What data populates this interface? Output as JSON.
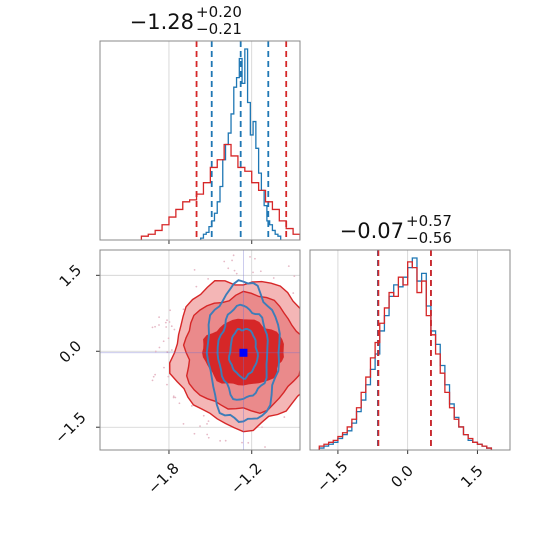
{
  "chart_data": {
    "type": "corner",
    "parameters": [
      "p1",
      "p2"
    ],
    "panels": [
      {
        "id": "hist-p1",
        "type": "histogram",
        "title_main": "−1.28",
        "title_sup": "+0.20",
        "title_sub": "−0.21",
        "xlim": [
          -2.3,
          -0.85
        ],
        "xticks": [
          -1.8,
          -1.2
        ],
        "grid": true,
        "series": [
          {
            "color": "#1f77b4",
            "bins": [
              -1.57,
              -1.55,
              -1.53,
              -1.51,
              -1.49,
              -1.47,
              -1.45,
              -1.43,
              -1.41,
              -1.39,
              -1.37,
              -1.35,
              -1.33,
              -1.31,
              -1.29,
              -1.27,
              -1.25,
              -1.23,
              -1.21,
              -1.19,
              -1.17,
              -1.15,
              -1.13,
              -1.11,
              -1.09,
              -1.07,
              -1.05,
              -1.03,
              -1.01,
              -0.99
            ],
            "counts": [
              0.01,
              0.03,
              0.04,
              0.07,
              0.1,
              0.14,
              0.2,
              0.28,
              0.42,
              0.5,
              0.56,
              0.66,
              0.8,
              0.85,
              0.95,
              0.82,
              1.0,
              0.72,
              0.55,
              0.62,
              0.48,
              0.35,
              0.26,
              0.18,
              0.1,
              0.08,
              0.05,
              0.03,
              0.02
            ],
            "quantile_lines": [
              -1.49,
              -1.28,
              -1.08
            ]
          },
          {
            "color": "#d62728",
            "bins": [
              -2.0,
              -1.95,
              -1.9,
              -1.85,
              -1.8,
              -1.75,
              -1.7,
              -1.65,
              -1.6,
              -1.55,
              -1.5,
              -1.45,
              -1.4,
              -1.35,
              -1.3,
              -1.25,
              -1.2,
              -1.15,
              -1.1,
              -1.05,
              -1.0,
              -0.95,
              -0.9,
              -0.85
            ],
            "counts": [
              0.02,
              0.03,
              0.05,
              0.08,
              0.12,
              0.16,
              0.2,
              0.21,
              0.24,
              0.3,
              0.38,
              0.42,
              0.5,
              0.44,
              0.38,
              0.36,
              0.3,
              0.26,
              0.2,
              0.16,
              0.1,
              0.06,
              0.03
            ],
            "quantile_lines": [
              -1.6,
              -0.95
            ]
          }
        ]
      },
      {
        "id": "hist-p2",
        "type": "histogram",
        "title_main": "−0.07",
        "title_sup": "+0.57",
        "title_sub": "−0.56",
        "xlim": [
          -2.1,
          2.2
        ],
        "xticks": [
          -1.5,
          0.0,
          1.5
        ],
        "xtick_labels": [
          "−1.5",
          "0.0",
          "1.5"
        ],
        "grid": true,
        "series": [
          {
            "color": "#1f77b4",
            "bins": [
              -1.9,
              -1.8,
              -1.7,
              -1.6,
              -1.5,
              -1.4,
              -1.3,
              -1.2,
              -1.1,
              -1.0,
              -0.9,
              -0.8,
              -0.7,
              -0.6,
              -0.5,
              -0.4,
              -0.3,
              -0.2,
              -0.1,
              0.0,
              0.1,
              0.2,
              0.3,
              0.4,
              0.5,
              0.6,
              0.7,
              0.8,
              0.9,
              1.0,
              1.1,
              1.2,
              1.3,
              1.4,
              1.5,
              1.6,
              1.7,
              1.8
            ],
            "counts": [
              0.01,
              0.02,
              0.03,
              0.04,
              0.06,
              0.08,
              0.1,
              0.14,
              0.2,
              0.26,
              0.34,
              0.42,
              0.5,
              0.62,
              0.7,
              0.8,
              0.86,
              0.85,
              0.9,
              0.95,
              1.0,
              0.88,
              0.92,
              0.75,
              0.62,
              0.55,
              0.44,
              0.34,
              0.24,
              0.17,
              0.12,
              0.08,
              0.05,
              0.04,
              0.03,
              0.02,
              0.01
            ],
            "quantile_lines": [
              -0.64,
              0.5
            ]
          },
          {
            "color": "#d62728",
            "bins": [
              -1.9,
              -1.8,
              -1.7,
              -1.6,
              -1.5,
              -1.4,
              -1.3,
              -1.2,
              -1.1,
              -1.0,
              -0.9,
              -0.8,
              -0.7,
              -0.6,
              -0.5,
              -0.4,
              -0.3,
              -0.2,
              -0.1,
              0.0,
              0.1,
              0.2,
              0.3,
              0.4,
              0.5,
              0.6,
              0.7,
              0.8,
              0.9,
              1.0,
              1.1,
              1.2,
              1.3,
              1.4,
              1.5,
              1.6,
              1.7,
              1.8
            ],
            "counts": [
              0.02,
              0.03,
              0.04,
              0.05,
              0.07,
              0.09,
              0.12,
              0.16,
              0.22,
              0.3,
              0.38,
              0.48,
              0.56,
              0.66,
              0.74,
              0.82,
              0.8,
              0.9,
              0.86,
              0.98,
              0.95,
              0.82,
              0.88,
              0.7,
              0.6,
              0.5,
              0.4,
              0.3,
              0.22,
              0.16,
              0.12,
              0.08,
              0.06,
              0.04,
              0.03,
              0.02,
              0.01
            ],
            "quantile_lines": [
              -0.63,
              0.5
            ]
          }
        ]
      },
      {
        "id": "contour-p1-p2",
        "type": "contour",
        "xlim": [
          -2.3,
          -0.85
        ],
        "ylim": [
          -1.95,
          2.0
        ],
        "xticks": [
          -1.8,
          -1.2
        ],
        "xtick_labels": [
          "−1.8",
          "−1.2"
        ],
        "yticks": [
          -1.5,
          0.0,
          1.5
        ],
        "ytick_labels": [
          "−1.5",
          "0.0",
          "1.5"
        ],
        "grid": true,
        "marker": {
          "x": -1.26,
          "y": -0.03,
          "color": "#0000ff"
        },
        "series": [
          {
            "color": "#d62728",
            "center": [
              -1.26,
              -0.03
            ],
            "levels": [
              {
                "rx": 0.51,
                "ry": 1.45,
                "fill": "#f4b6b6"
              },
              {
                "rx": 0.43,
                "ry": 1.15,
                "fill": "#ea8a8b"
              },
              {
                "rx": 0.29,
                "ry": 0.64,
                "fill": "#d62728"
              }
            ]
          },
          {
            "color": "#3d7db8",
            "center": [
              -1.26,
              -0.03
            ],
            "levels": [
              {
                "rx": 0.26,
                "ry": 1.38
              },
              {
                "rx": 0.18,
                "ry": 0.92
              },
              {
                "rx": 0.1,
                "ry": 0.48
              }
            ]
          }
        ]
      }
    ]
  }
}
